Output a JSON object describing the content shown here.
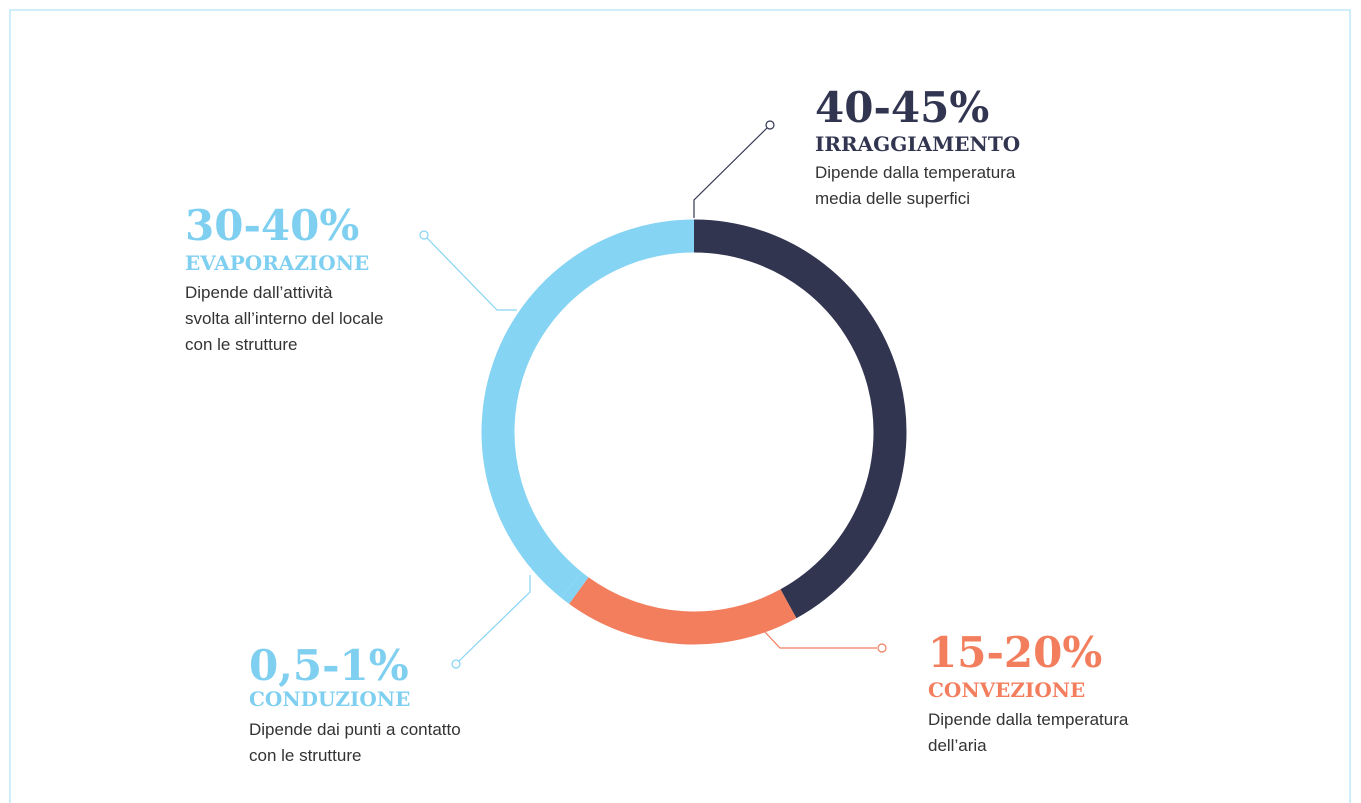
{
  "chart_data": {
    "type": "pie",
    "donut": true,
    "categories": [
      "IRRAGGIAMENTO",
      "CONVEZIONE",
      "CONDUZIONE",
      "EVAPORAZIONE"
    ],
    "values": [
      42,
      18,
      0.75,
      39.25
    ],
    "value_labels": [
      "40-45%",
      "15-20%",
      "0,5-1%",
      "30-40%"
    ],
    "colors": [
      "#323550",
      "#f27e5e",
      "#86d4f4",
      "#86d4f4"
    ],
    "descriptions": [
      [
        "Dipende dalla temperatura",
        "media delle superfici"
      ],
      [
        "Dipende dalla temperatura",
        "dell’aria"
      ],
      [
        "Dipende dai punti a contatto",
        "con le strutture"
      ],
      [
        "Dipende dall’attività",
        "svolta all’interno del locale",
        "con le strutture"
      ]
    ]
  }
}
